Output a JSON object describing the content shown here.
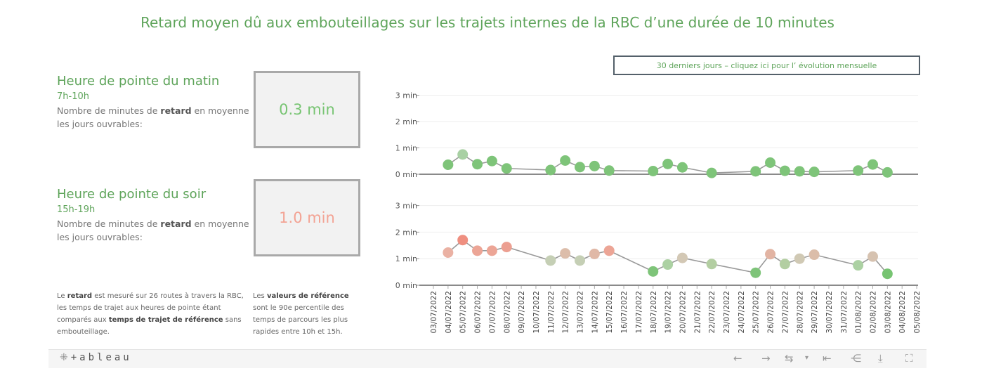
{
  "title": "Retard moyen dû aux embouteillages sur les trajets internes de la RBC d’une durée de 10 minutes",
  "kpis": {
    "morning": {
      "heading": "Heure de pointe du matin",
      "hours": "7h-10h",
      "desc_pre": "Nombre de minutes de ",
      "desc_bold": "retard",
      "desc_post": " en moyenne les jours ouvrables:",
      "value": "0.3 min",
      "value_color": "#77c472"
    },
    "evening": {
      "heading": "Heure de pointe du soir",
      "hours": "15h-19h",
      "desc_pre": "Nombre de minutes de ",
      "desc_bold": "retard",
      "desc_post": " en moyenne les jours ouvrables:",
      "value": "1.0 min",
      "value_color": "#f3a394"
    }
  },
  "notes": {
    "left": {
      "t1": "Le ",
      "b1": "retard",
      "t2": " est mesuré sur 26 routes à travers la RBC, les temps de trajet aux heures de pointe étant comparés aux ",
      "b2": "temps de trajet de référence",
      "t3": " sans embouteillage."
    },
    "right": {
      "t1": "Les ",
      "b1": "valeurs de référence",
      "t2": " sont le 90e percentile des temps de parcours les plus rapides entre 10h et 15h."
    }
  },
  "toggle_button": "30 derniers jours – cliquez ici pour l’ évolution mensuelle",
  "toolbar": {
    "logo": "+ableau",
    "icons": [
      "logo-icon",
      "undo-icon",
      "redo-icon",
      "revert-icon",
      "revert-dropdown-icon",
      "reset-icon",
      "share-icon",
      "download-icon",
      "fullscreen-icon"
    ]
  },
  "chart_data": {
    "type": "line",
    "x_labels": [
      "03/07/2022",
      "04/07/2022",
      "05/07/2022",
      "06/07/2022",
      "07/07/2022",
      "08/07/2022",
      "09/07/2022",
      "10/07/2022",
      "11/07/2022",
      "12/07/2022",
      "13/07/2022",
      "14/07/2022",
      "15/07/2022",
      "16/07/2022",
      "17/07/2022",
      "18/07/2022",
      "19/07/2022",
      "20/07/2022",
      "21/07/2022",
      "22/07/2022",
      "23/07/2022",
      "24/07/2022",
      "25/07/2022",
      "26/07/2022",
      "27/07/2022",
      "28/07/2022",
      "29/07/2022",
      "30/07/2022",
      "31/07/2022",
      "01/08/2022",
      "02/08/2022",
      "03/08/2022",
      "04/08/2022",
      "05/08/2022"
    ],
    "y_ticks": [
      "0 min",
      "1 min",
      "2 min",
      "3 min"
    ],
    "ylim": [
      0,
      3.3
    ],
    "grid": true,
    "panels": [
      {
        "name": "matin",
        "points": [
          {
            "x": "04/07/2022",
            "y": 0.36,
            "color": "#7ec479"
          },
          {
            "x": "05/07/2022",
            "y": 0.75,
            "color": "#a8d0a3"
          },
          {
            "x": "06/07/2022",
            "y": 0.38,
            "color": "#7ec479"
          },
          {
            "x": "07/07/2022",
            "y": 0.5,
            "color": "#7ec479"
          },
          {
            "x": "08/07/2022",
            "y": 0.22,
            "color": "#7ec479"
          },
          {
            "x": "11/07/2022",
            "y": 0.16,
            "color": "#7ec479"
          },
          {
            "x": "12/07/2022",
            "y": 0.52,
            "color": "#7ec479"
          },
          {
            "x": "13/07/2022",
            "y": 0.27,
            "color": "#7ec479"
          },
          {
            "x": "14/07/2022",
            "y": 0.31,
            "color": "#7ec479"
          },
          {
            "x": "15/07/2022",
            "y": 0.14,
            "color": "#7ec479"
          },
          {
            "x": "18/07/2022",
            "y": 0.12,
            "color": "#7ec479"
          },
          {
            "x": "19/07/2022",
            "y": 0.39,
            "color": "#7ec479"
          },
          {
            "x": "20/07/2022",
            "y": 0.26,
            "color": "#7ec479"
          },
          {
            "x": "22/07/2022",
            "y": 0.05,
            "color": "#7ec479"
          },
          {
            "x": "25/07/2022",
            "y": 0.11,
            "color": "#7ec479"
          },
          {
            "x": "26/07/2022",
            "y": 0.44,
            "color": "#7ec479"
          },
          {
            "x": "27/07/2022",
            "y": 0.13,
            "color": "#7ec479"
          },
          {
            "x": "28/07/2022",
            "y": 0.11,
            "color": "#7ec479"
          },
          {
            "x": "29/07/2022",
            "y": 0.09,
            "color": "#7ec479"
          },
          {
            "x": "01/08/2022",
            "y": 0.14,
            "color": "#7ec479"
          },
          {
            "x": "02/08/2022",
            "y": 0.37,
            "color": "#7ec479"
          },
          {
            "x": "03/08/2022",
            "y": 0.07,
            "color": "#7ec479"
          }
        ]
      },
      {
        "name": "soir",
        "points": [
          {
            "x": "04/07/2022",
            "y": 1.23,
            "color": "#eab1a3"
          },
          {
            "x": "05/07/2022",
            "y": 1.7,
            "color": "#ef8f80"
          },
          {
            "x": "06/07/2022",
            "y": 1.3,
            "color": "#eca596"
          },
          {
            "x": "07/07/2022",
            "y": 1.3,
            "color": "#eca596"
          },
          {
            "x": "08/07/2022",
            "y": 1.44,
            "color": "#ec9f91"
          },
          {
            "x": "11/07/2022",
            "y": 0.93,
            "color": "#c5cfb5"
          },
          {
            "x": "12/07/2022",
            "y": 1.2,
            "color": "#dcbdaa"
          },
          {
            "x": "13/07/2022",
            "y": 0.93,
            "color": "#c5cfb5"
          },
          {
            "x": "14/07/2022",
            "y": 1.18,
            "color": "#e0b8a6"
          },
          {
            "x": "15/07/2022",
            "y": 1.3,
            "color": "#eca596"
          },
          {
            "x": "18/07/2022",
            "y": 0.52,
            "color": "#7ec479"
          },
          {
            "x": "19/07/2022",
            "y": 0.78,
            "color": "#acd1a3"
          },
          {
            "x": "20/07/2022",
            "y": 1.03,
            "color": "#d3c8b5"
          },
          {
            "x": "22/07/2022",
            "y": 0.8,
            "color": "#b3cea2"
          },
          {
            "x": "25/07/2022",
            "y": 0.47,
            "color": "#7ec479"
          },
          {
            "x": "26/07/2022",
            "y": 1.17,
            "color": "#e2b4a3"
          },
          {
            "x": "27/07/2022",
            "y": 0.8,
            "color": "#b3cea2"
          },
          {
            "x": "28/07/2022",
            "y": 1.0,
            "color": "#d0c9b4"
          },
          {
            "x": "29/07/2022",
            "y": 1.15,
            "color": "#dbbda9"
          },
          {
            "x": "01/08/2022",
            "y": 0.75,
            "color": "#acd1a3"
          },
          {
            "x": "02/08/2022",
            "y": 1.08,
            "color": "#d6c2b0"
          },
          {
            "x": "03/08/2022",
            "y": 0.43,
            "color": "#77c472"
          }
        ]
      }
    ]
  }
}
